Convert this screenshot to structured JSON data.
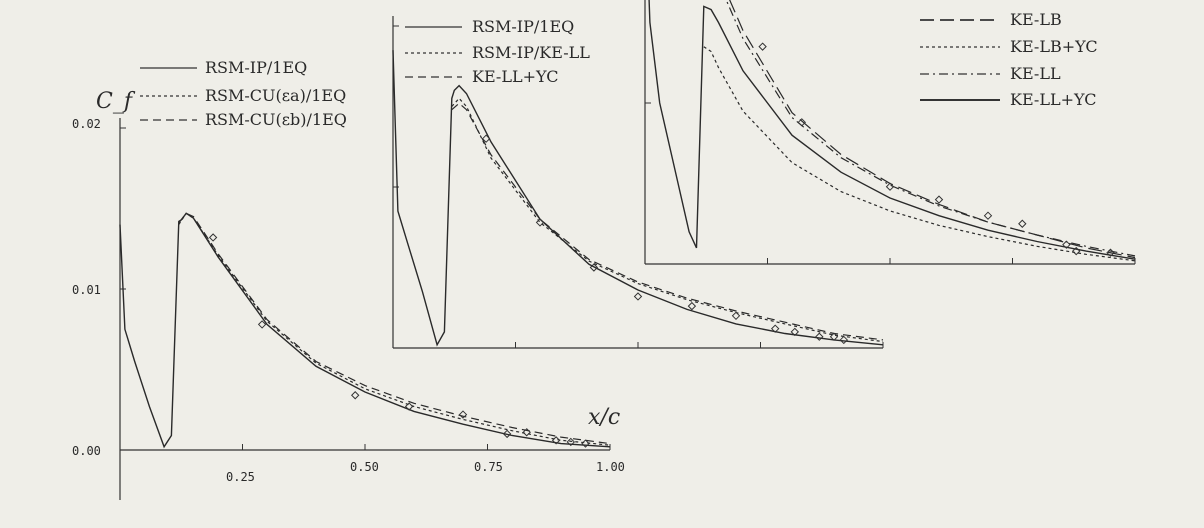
{
  "chart_data": [
    {
      "type": "line",
      "title": "",
      "ylabel": "C_f",
      "xlabel": "x/c",
      "xlim": [
        0,
        1
      ],
      "ylim": [
        0,
        0.02
      ],
      "x_ticks": [
        "0.25",
        "0.50",
        "0.75",
        "1.00"
      ],
      "y_ticks": [
        "0.00",
        "0.01",
        "0.02"
      ],
      "legend_position": "top-left",
      "series": [
        {
          "name": "RSM-IP/1EQ",
          "style": "solid",
          "x": [
            0.0,
            0.01,
            0.03,
            0.06,
            0.09,
            0.105,
            0.12,
            0.125,
            0.135,
            0.15,
            0.2,
            0.3,
            0.4,
            0.5,
            0.6,
            0.7,
            0.8,
            0.9,
            1.0
          ],
          "y": [
            0.014,
            0.0075,
            0.0055,
            0.0027,
            0.0002,
            0.0009,
            0.0142,
            0.0143,
            0.0147,
            0.0144,
            0.012,
            0.0078,
            0.0052,
            0.0036,
            0.0024,
            0.0016,
            0.0009,
            0.0004,
            0.0002
          ]
        },
        {
          "name": "RSM-CU(εa)/1EQ",
          "style": "dotted",
          "x": [
            0.12,
            0.135,
            0.15,
            0.2,
            0.3,
            0.4,
            0.5,
            0.6,
            0.7,
            0.8,
            0.9,
            1.0
          ],
          "y": [
            0.014,
            0.0147,
            0.0144,
            0.0121,
            0.008,
            0.0054,
            0.0038,
            0.0027,
            0.0019,
            0.0012,
            0.0006,
            0.0003
          ]
        },
        {
          "name": "RSM-CU(εb)/1EQ",
          "style": "dashed",
          "x": [
            0.12,
            0.135,
            0.15,
            0.2,
            0.3,
            0.4,
            0.5,
            0.6,
            0.7,
            0.8,
            0.9,
            1.0
          ],
          "y": [
            0.0141,
            0.0147,
            0.0145,
            0.0122,
            0.0081,
            0.0055,
            0.004,
            0.0029,
            0.0021,
            0.0014,
            0.0008,
            0.0004
          ]
        }
      ],
      "experiment_points": {
        "x": [
          0.19,
          0.29,
          0.48,
          0.59,
          0.7,
          0.79,
          0.83,
          0.89,
          0.92,
          0.95
        ],
        "y": [
          0.0132,
          0.0078,
          0.0034,
          0.0027,
          0.0022,
          0.001,
          0.0011,
          0.0006,
          0.0005,
          0.0004
        ]
      }
    },
    {
      "type": "line",
      "title": "",
      "xlim": [
        0,
        1
      ],
      "ylim": [
        0,
        0.02
      ],
      "legend_position": "top-left",
      "series": [
        {
          "name": "RSM-IP/1EQ",
          "style": "solid",
          "x": [
            0.0,
            0.01,
            0.03,
            0.06,
            0.09,
            0.105,
            0.12,
            0.125,
            0.135,
            0.15,
            0.2,
            0.3,
            0.4,
            0.5,
            0.6,
            0.7,
            0.8,
            0.9,
            1.0
          ],
          "y": [
            0.0185,
            0.0085,
            0.0065,
            0.0035,
            0.0002,
            0.001,
            0.0155,
            0.016,
            0.0163,
            0.0158,
            0.0128,
            0.008,
            0.0052,
            0.0036,
            0.0024,
            0.0015,
            0.0009,
            0.0005,
            0.0002
          ]
        },
        {
          "name": "RSM-IP/KE-LL",
          "style": "dotted",
          "x": [
            0.12,
            0.135,
            0.15,
            0.2,
            0.3,
            0.4,
            0.5,
            0.6,
            0.7,
            0.8,
            0.9,
            1.0
          ],
          "y": [
            0.015,
            0.0155,
            0.015,
            0.0118,
            0.0078,
            0.0054,
            0.004,
            0.003,
            0.0022,
            0.0015,
            0.0008,
            0.0004
          ]
        },
        {
          "name": "KE-LL+YC",
          "style": "dashed",
          "x": [
            0.12,
            0.135,
            0.15,
            0.2,
            0.3,
            0.4,
            0.5,
            0.6,
            0.7,
            0.8,
            0.9,
            1.0
          ],
          "y": [
            0.0148,
            0.0152,
            0.0148,
            0.012,
            0.008,
            0.0055,
            0.0041,
            0.0031,
            0.0023,
            0.0016,
            0.0009,
            0.0005
          ]
        }
      ],
      "experiment_points": {
        "x": [
          0.19,
          0.3,
          0.41,
          0.5,
          0.61,
          0.7,
          0.78,
          0.82,
          0.87,
          0.9,
          0.92
        ],
        "y": [
          0.013,
          0.0078,
          0.005,
          0.0032,
          0.0026,
          0.002,
          0.0012,
          0.001,
          0.0007,
          0.0007,
          0.0005
        ]
      }
    },
    {
      "type": "line",
      "title": "",
      "xlim": [
        0,
        1
      ],
      "ylim": [
        0,
        0.02
      ],
      "legend_position": "top-right",
      "series": [
        {
          "name": "KE-LB",
          "style": "long-dash",
          "x": [
            0.12,
            0.135,
            0.15,
            0.2,
            0.3,
            0.4,
            0.5,
            0.6,
            0.7,
            0.8,
            0.9,
            1.0
          ],
          "y": [
            0.0197,
            0.0194,
            0.018,
            0.0145,
            0.0094,
            0.0068,
            0.005,
            0.0037,
            0.0026,
            0.0018,
            0.001,
            0.0004
          ]
        },
        {
          "name": "KE-LB+YC",
          "style": "dotted",
          "x": [
            0.12,
            0.135,
            0.15,
            0.2,
            0.3,
            0.4,
            0.5,
            0.6,
            0.7,
            0.8,
            0.9,
            1.0
          ],
          "y": [
            0.0135,
            0.0132,
            0.0122,
            0.0095,
            0.0063,
            0.0045,
            0.0033,
            0.0024,
            0.0017,
            0.0011,
            0.0006,
            0.0002
          ]
        },
        {
          "name": "KE-LL",
          "style": "dash-dot",
          "x": [
            0.12,
            0.135,
            0.15,
            0.2,
            0.3,
            0.4,
            0.5,
            0.6,
            0.7,
            0.8,
            0.9,
            1.0
          ],
          "y": [
            0.019,
            0.0187,
            0.0175,
            0.014,
            0.0091,
            0.0066,
            0.0049,
            0.0036,
            0.0026,
            0.0018,
            0.0011,
            0.0005
          ]
        },
        {
          "name": "KE-LL+YC",
          "style": "solid",
          "x": [
            0.0,
            0.01,
            0.03,
            0.06,
            0.09,
            0.105,
            0.12,
            0.135,
            0.15,
            0.2,
            0.3,
            0.4,
            0.5,
            0.6,
            0.7,
            0.8,
            0.9,
            1.0
          ],
          "y": [
            0.0235,
            0.015,
            0.01,
            0.006,
            0.002,
            0.001,
            0.016,
            0.0158,
            0.015,
            0.012,
            0.008,
            0.0057,
            0.0041,
            0.003,
            0.0021,
            0.0014,
            0.0008,
            0.0003
          ]
        }
      ],
      "experiment_points": {
        "x": [
          0.17,
          0.24,
          0.32,
          0.5,
          0.6,
          0.7,
          0.77,
          0.86,
          0.88,
          0.95
        ],
        "y": [
          0.0175,
          0.0135,
          0.0088,
          0.0048,
          0.004,
          0.003,
          0.0025,
          0.0012,
          0.0008,
          0.0007
        ]
      }
    }
  ]
}
